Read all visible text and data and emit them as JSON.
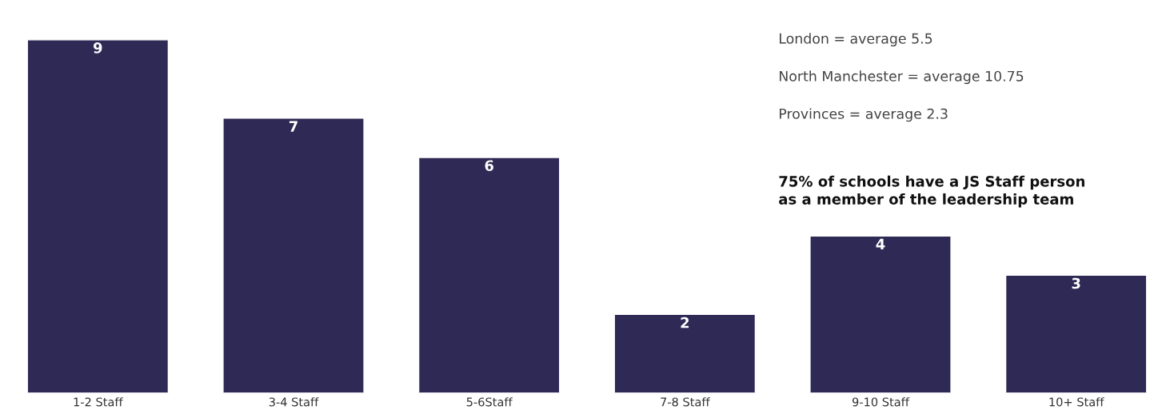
{
  "chart_data": {
    "type": "bar",
    "categories": [
      "1-2 Staff",
      "3-4 Staff",
      "5-6Staff",
      "7-8 Staff",
      "9-10 Staff",
      "10+ Staff"
    ],
    "values": [
      9,
      7,
      6,
      2,
      4,
      3
    ],
    "color": "#2e2a55",
    "data_labels": true,
    "grid": false,
    "legend": false,
    "annotations": [
      "London = average 5.5",
      "North Manchester = average 10.75",
      "Provinces = average 2.3",
      "75% of schools have a JS Staff person\nas a member of the leadership team"
    ]
  }
}
